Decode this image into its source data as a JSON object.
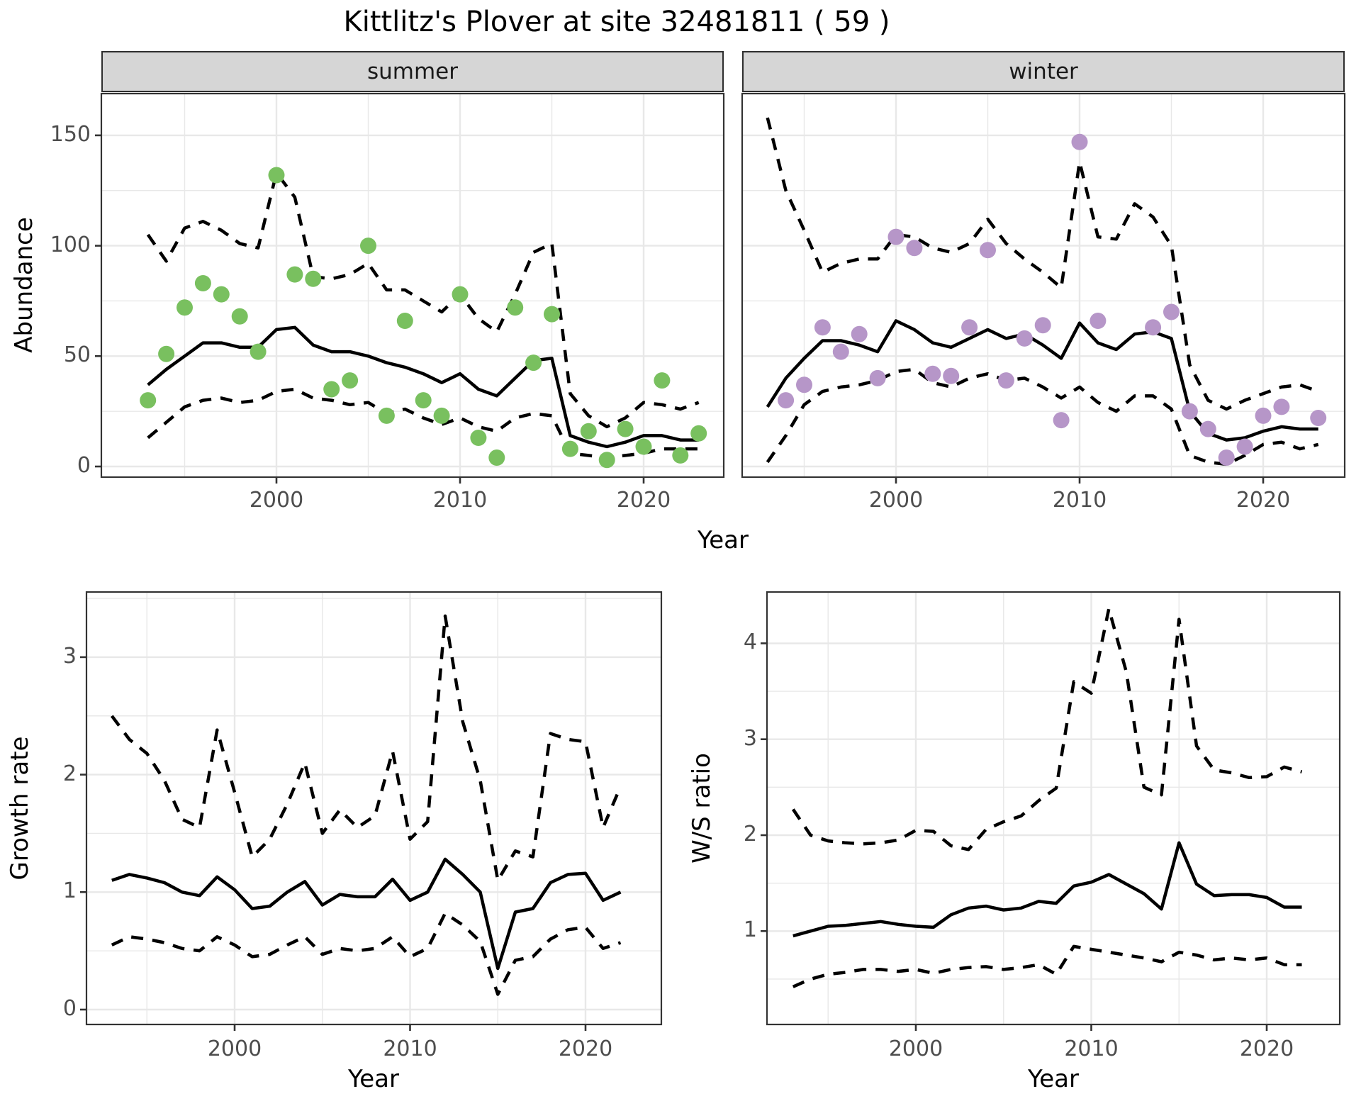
{
  "title": "Kittlitz's Plover at site 32481811 ( 59 )",
  "facets": {
    "summer": "summer",
    "winter": "winter"
  },
  "axes": {
    "abundance_label": "Abundance",
    "year_label_top": "Year",
    "growth_label": "Growth rate",
    "year_label_growth": "Year",
    "ws_label": "W/S ratio",
    "year_label_ws": "Year",
    "abundance_ticks": [
      "0",
      "50",
      "100",
      "150"
    ],
    "abundance_tick_values": [
      0,
      50,
      100,
      150
    ],
    "year_ticks": [
      "2000",
      "2010",
      "2020"
    ],
    "year_tick_values": [
      2000,
      2010,
      2020
    ],
    "growth_ticks": [
      "0",
      "1",
      "2",
      "3"
    ],
    "growth_tick_values": [
      0,
      1,
      2,
      3
    ],
    "ws_ticks": [
      "1",
      "2",
      "3",
      "4"
    ],
    "ws_tick_values": [
      1,
      2,
      3,
      4
    ]
  },
  "colors": {
    "summer_points": "#79c05f",
    "winter_points": "#b696c8",
    "median_line": "#000000",
    "interval_line": "#000000",
    "strip_bg": "#d6d6d6",
    "gridline": "#e8e8e8",
    "axis_text": "#4d4d4d",
    "panel_border": "#333333"
  },
  "chart_data": [
    {
      "type": "line+scatter",
      "panel": "abundance-summer",
      "facet_label": "summer",
      "xlabel": "Year",
      "ylabel": "Abundance",
      "xlim": [
        1990.5,
        2024.8
      ],
      "ylim": [
        -5,
        169
      ],
      "x": [
        1993,
        1994,
        1995,
        1996,
        1997,
        1998,
        1999,
        2000,
        2001,
        2002,
        2003,
        2004,
        2005,
        2006,
        2007,
        2008,
        2009,
        2010,
        2011,
        2012,
        2013,
        2014,
        2015,
        2016,
        2017,
        2018,
        2019,
        2020,
        2021,
        2022,
        2023
      ],
      "series": [
        {
          "name": "observed counts",
          "style": "points",
          "values": [
            30,
            51,
            72,
            83,
            78,
            68,
            52,
            132,
            87,
            85,
            35,
            39,
            100,
            23,
            66,
            30,
            23,
            78,
            13,
            4,
            72,
            47,
            69,
            8,
            16,
            3,
            17,
            9,
            39,
            5,
            15
          ]
        },
        {
          "name": "model median",
          "style": "solid",
          "values": [
            37,
            44,
            50,
            56,
            56,
            54,
            54,
            62,
            63,
            55,
            52,
            52,
            50,
            47,
            45,
            42,
            38,
            42,
            35,
            32,
            40,
            48,
            49,
            14,
            11,
            9,
            11,
            14,
            14,
            12,
            12
          ]
        },
        {
          "name": "upper CI",
          "style": "dashed",
          "values": [
            105,
            93,
            108,
            111,
            107,
            101,
            99,
            133,
            122,
            86,
            85,
            87,
            92,
            80,
            80,
            75,
            70,
            78,
            67,
            61,
            78,
            97,
            101,
            33,
            23,
            18,
            22,
            29,
            28,
            26,
            29
          ]
        },
        {
          "name": "lower CI",
          "style": "dashed",
          "values": [
            13,
            20,
            27,
            30,
            31,
            29,
            30,
            34,
            35,
            31,
            30,
            28,
            29,
            24,
            26,
            22,
            19,
            22,
            18,
            16,
            22,
            24,
            23,
            6,
            5,
            4,
            5,
            6,
            8,
            8,
            8
          ]
        }
      ]
    },
    {
      "type": "line+scatter",
      "panel": "abundance-winter",
      "facet_label": "winter",
      "xlabel": "Year",
      "ylabel": "Abundance",
      "xlim": [
        1990.5,
        2024.8
      ],
      "ylim": [
        -5,
        169
      ],
      "x": [
        1993,
        1994,
        1995,
        1996,
        1997,
        1998,
        1999,
        2000,
        2001,
        2002,
        2003,
        2004,
        2005,
        2006,
        2007,
        2008,
        2009,
        2010,
        2011,
        2012,
        2013,
        2014,
        2015,
        2016,
        2017,
        2018,
        2019,
        2020,
        2021,
        2022,
        2023
      ],
      "series": [
        {
          "name": "observed counts",
          "style": "points",
          "values": [
            null,
            30,
            37,
            63,
            52,
            60,
            40,
            104,
            99,
            42,
            41,
            63,
            98,
            39,
            58,
            64,
            21,
            147,
            66,
            null,
            null,
            63,
            70,
            25,
            17,
            4,
            9,
            23,
            27,
            null,
            22
          ]
        },
        {
          "name": "model median",
          "style": "solid",
          "values": [
            27,
            40,
            49,
            57,
            57,
            55,
            52,
            66,
            62,
            56,
            54,
            58,
            62,
            58,
            60,
            55,
            49,
            65,
            56,
            53,
            60,
            61,
            58,
            25,
            15,
            12,
            13,
            16,
            18,
            17,
            17
          ]
        },
        {
          "name": "upper CI",
          "style": "dashed",
          "values": [
            158,
            125,
            107,
            88,
            92,
            94,
            94,
            105,
            104,
            99,
            97,
            101,
            112,
            101,
            94,
            88,
            81,
            138,
            104,
            103,
            119,
            113,
            100,
            46,
            30,
            26,
            30,
            33,
            36,
            37,
            34
          ]
        },
        {
          "name": "lower CI",
          "style": "dashed",
          "values": [
            2,
            14,
            28,
            34,
            36,
            37,
            39,
            43,
            44,
            38,
            36,
            40,
            42,
            39,
            40,
            36,
            31,
            36,
            29,
            25,
            32,
            32,
            26,
            5,
            2,
            1,
            5,
            10,
            11,
            8,
            10
          ]
        }
      ]
    },
    {
      "type": "line",
      "panel": "growth-rate",
      "xlabel": "Year",
      "ylabel": "Growth rate",
      "xlim": [
        1991.5,
        2023.5
      ],
      "ylim": [
        -0.1,
        3.55
      ],
      "x": [
        1993,
        1994,
        1995,
        1996,
        1997,
        1998,
        1999,
        2000,
        2001,
        2002,
        2003,
        2004,
        2005,
        2006,
        2007,
        2008,
        2009,
        2010,
        2011,
        2012,
        2013,
        2014,
        2015,
        2016,
        2017,
        2018,
        2019,
        2020,
        2021,
        2022
      ],
      "series": [
        {
          "name": "median growth rate",
          "style": "solid",
          "values": [
            1.1,
            1.15,
            1.12,
            1.08,
            1.0,
            0.97,
            1.13,
            1.02,
            0.86,
            0.88,
            1.0,
            1.09,
            0.89,
            0.98,
            0.96,
            0.96,
            1.11,
            0.93,
            1.0,
            1.28,
            1.15,
            1.0,
            0.35,
            0.83,
            0.86,
            1.08,
            1.15,
            1.16,
            0.93,
            1.0
          ]
        },
        {
          "name": "upper CI",
          "style": "dashed",
          "values": [
            2.5,
            2.3,
            2.18,
            1.95,
            1.62,
            1.55,
            2.38,
            1.85,
            1.3,
            1.45,
            1.75,
            2.1,
            1.5,
            1.7,
            1.55,
            1.65,
            2.2,
            1.45,
            1.6,
            3.35,
            2.45,
            1.95,
            1.1,
            1.35,
            1.3,
            2.35,
            2.3,
            2.28,
            1.55,
            1.9
          ]
        },
        {
          "name": "lower CI",
          "style": "dashed",
          "values": [
            0.55,
            0.62,
            0.6,
            0.57,
            0.52,
            0.5,
            0.62,
            0.55,
            0.45,
            0.47,
            0.55,
            0.62,
            0.47,
            0.52,
            0.5,
            0.52,
            0.62,
            0.45,
            0.52,
            0.82,
            0.72,
            0.58,
            0.13,
            0.42,
            0.45,
            0.6,
            0.68,
            0.7,
            0.52,
            0.57
          ]
        }
      ]
    },
    {
      "type": "line",
      "panel": "ws-ratio",
      "xlabel": "Year",
      "ylabel": "W/S ratio",
      "xlim": [
        1991.5,
        2023.5
      ],
      "ylim": [
        0.0,
        4.5
      ],
      "x": [
        1993,
        1994,
        1995,
        1996,
        1997,
        1998,
        1999,
        2000,
        2001,
        2002,
        2003,
        2004,
        2005,
        2006,
        2007,
        2008,
        2009,
        2010,
        2011,
        2012,
        2013,
        2014,
        2015,
        2016,
        2017,
        2018,
        2019,
        2020,
        2021,
        2022
      ],
      "series": [
        {
          "name": "median W/S ratio",
          "style": "solid",
          "values": [
            0.95,
            1.0,
            1.05,
            1.06,
            1.08,
            1.1,
            1.07,
            1.05,
            1.04,
            1.17,
            1.24,
            1.26,
            1.22,
            1.24,
            1.31,
            1.29,
            1.47,
            1.51,
            1.59,
            1.49,
            1.39,
            1.23,
            1.92,
            1.49,
            1.37,
            1.38,
            1.38,
            1.35,
            1.25,
            1.25
          ]
        },
        {
          "name": "upper CI",
          "style": "dashed",
          "values": [
            2.27,
            2.0,
            1.94,
            1.92,
            1.91,
            1.92,
            1.95,
            2.05,
            2.04,
            1.89,
            1.85,
            2.06,
            2.14,
            2.2,
            2.36,
            2.49,
            3.6,
            3.48,
            4.36,
            3.7,
            2.5,
            2.42,
            4.25,
            2.93,
            2.68,
            2.65,
            2.6,
            2.61,
            2.71,
            2.66
          ]
        },
        {
          "name": "lower CI",
          "style": "dashed",
          "values": [
            0.42,
            0.5,
            0.55,
            0.57,
            0.6,
            0.6,
            0.58,
            0.6,
            0.56,
            0.6,
            0.62,
            0.63,
            0.6,
            0.62,
            0.65,
            0.55,
            0.84,
            0.81,
            0.78,
            0.75,
            0.72,
            0.68,
            0.78,
            0.75,
            0.7,
            0.72,
            0.7,
            0.72,
            0.65,
            0.65
          ]
        }
      ]
    }
  ]
}
